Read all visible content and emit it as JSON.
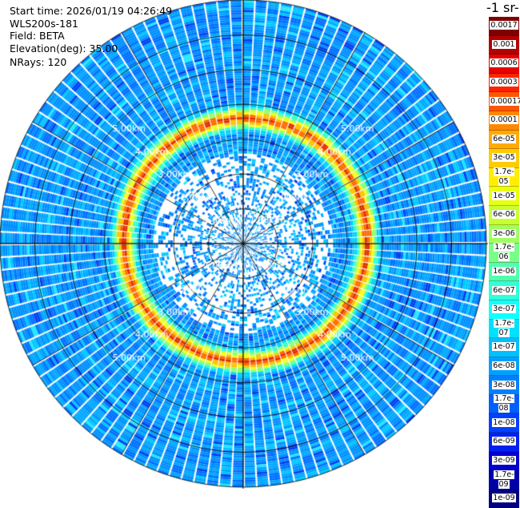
{
  "info": {
    "start_time": "Start time: 2026/01/19 04:26:49",
    "instrument": "WLS200s-181",
    "field": "Field: BETA",
    "elevation": "Elevation(deg): 35.00",
    "nrays": "NRays: 120"
  },
  "colorbar": {
    "unit_label": "-1 sr-",
    "levels": [
      "0.0017",
      "0.001",
      "0.0006",
      "0.0003",
      "0.00017",
      "0.0001",
      "6e-05",
      "3e-05",
      "1.7e-05",
      "1e-05",
      "6e-06",
      "3e-06",
      "1.7e-06",
      "1e-06",
      "6e-07",
      "3e-07",
      "1.7e-07",
      "1e-07",
      "6e-08",
      "3e-08",
      "1.7e-08",
      "1e-08",
      "6e-09",
      "3e-09",
      "1.7e-09",
      "1e-09"
    ],
    "colors": [
      "#7f0000",
      "#b30000",
      "#e60000",
      "#ff2200",
      "#ff5500",
      "#ff8800",
      "#ffaa00",
      "#ffcc00",
      "#ffee00",
      "#e8ff10",
      "#c8ff30",
      "#a0ff60",
      "#78ff88",
      "#50ffb0",
      "#30ffd8",
      "#10ffff",
      "#00e0ff",
      "#00c0ff",
      "#00a0ff",
      "#0080ff",
      "#0060ff",
      "#0040ff",
      "#0020f0",
      "#0000d0",
      "#0000a8",
      "#000080"
    ]
  },
  "range_labels": {
    "r1": "1.00km",
    "r2": "2.00km",
    "r3": "3.00km",
    "r4": "4.00km",
    "r5": "5.00km"
  },
  "radar": {
    "nrays": 120,
    "max_range_km": 7.0,
    "ring_peak_km": 3.5,
    "rings_km": [
      1,
      2,
      3,
      4,
      5,
      6,
      7
    ],
    "spokes_deg": [
      0,
      30,
      60,
      90,
      120,
      150,
      180,
      210,
      240,
      270,
      300,
      330
    ]
  }
}
